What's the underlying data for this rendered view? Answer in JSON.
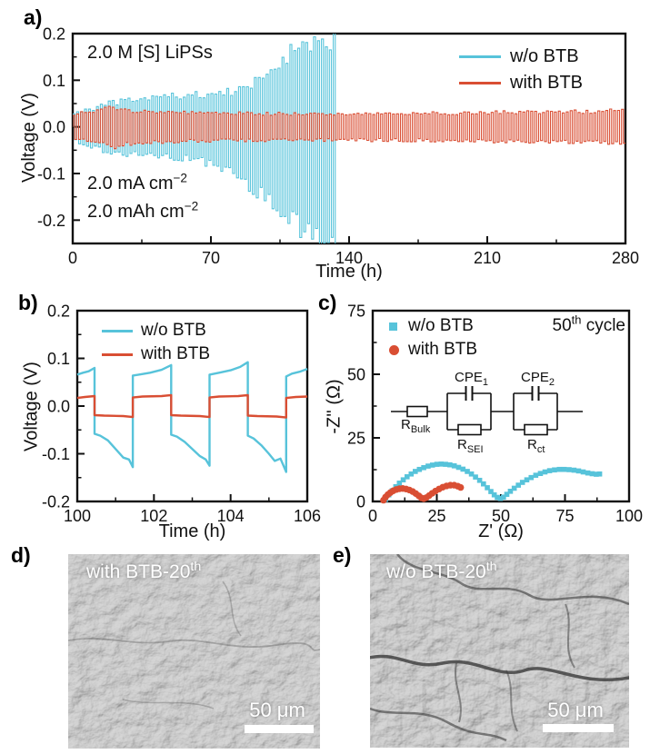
{
  "colors": {
    "cyan": "#57C3DA",
    "red": "#D94E33",
    "axis": "#111111",
    "sem_gray": "#8a8a8a"
  },
  "panel_a": {
    "label": "a)",
    "ylabel": "Voltage (V)",
    "xlabel": "Time (h)",
    "annotation_electrolyte": "2.0 M [S] LiPSs",
    "annotation_current": {
      "text": "2.0 mA cm",
      "sup": "−2"
    },
    "annotation_capacity": {
      "text": "2.0 mAh cm",
      "sup": "−2"
    },
    "legend": [
      {
        "label": "w/o BTB",
        "color": "#57C3DA"
      },
      {
        "label": "with BTB",
        "color": "#D94E33"
      }
    ]
  },
  "panel_b": {
    "label": "b)",
    "ylabel": "Voltage (V)",
    "xlabel": "Time (h)",
    "legend": [
      {
        "label": "w/o BTB",
        "color": "#57C3DA"
      },
      {
        "label": "with BTB",
        "color": "#D94E33"
      }
    ]
  },
  "panel_c": {
    "label": "c)",
    "ylabel": "-Z'' (Ω)",
    "xlabel": "Z' (Ω)",
    "cycle_note": {
      "num": "50",
      "sup": "th",
      "rest": " cycle"
    },
    "legend": [
      {
        "label": "w/o BTB",
        "color": "#57C3DA",
        "marker": "square"
      },
      {
        "label": "with BTB",
        "color": "#D94E33",
        "marker": "circle"
      }
    ],
    "circuit": {
      "r_bulk": {
        "main": "R",
        "sub": "Bulk"
      },
      "cpe1": {
        "main": "CPE",
        "sub": "1"
      },
      "cpe2": {
        "main": "CPE",
        "sub": "2"
      },
      "r_sei": {
        "main": "R",
        "sub": "SEI"
      },
      "r_ct": {
        "main": "R",
        "sub": "ct"
      }
    }
  },
  "panel_d": {
    "label": "d)",
    "caption": {
      "text": "with BTB-20",
      "sup": "th"
    },
    "scalebar": "50 μm"
  },
  "panel_e": {
    "label": "e)",
    "caption": {
      "text": "w/o BTB-20",
      "sup": "th"
    },
    "scalebar": "50 μm"
  },
  "chart_data": [
    {
      "id": "a",
      "type": "line",
      "xlabel": "Time (h)",
      "ylabel": "Voltage (V)",
      "xlim": [
        0,
        280
      ],
      "ylim": [
        -0.25,
        0.2
      ],
      "xticks": [
        0,
        70,
        140,
        210,
        280
      ],
      "yticks": [
        0.2,
        0.1,
        0.0,
        -0.1,
        -0.2
      ],
      "cycle_period_h": 2,
      "annotations": [
        "2.0 M [S] LiPSs",
        "2.0 mA cm−2",
        "2.0 mAh cm−2"
      ],
      "legend_position": "top-right",
      "series": [
        {
          "name": "w/o BTB",
          "color": "#57C3DA",
          "t_start": 0,
          "t_end": 134,
          "envelope_t": [
            0,
            10,
            20,
            30,
            45,
            60,
            70,
            80,
            90,
            100,
            110,
            120,
            128,
            134
          ],
          "envelope_pos": [
            0.03,
            0.04,
            0.052,
            0.057,
            0.065,
            0.068,
            0.07,
            0.075,
            0.09,
            0.12,
            0.16,
            0.17,
            0.18,
            0.19
          ],
          "envelope_neg": [
            -0.03,
            -0.045,
            -0.058,
            -0.06,
            -0.065,
            -0.07,
            -0.08,
            -0.1,
            -0.13,
            -0.17,
            -0.2,
            -0.23,
            -0.24,
            -0.24
          ]
        },
        {
          "name": "with BTB",
          "color": "#D94E33",
          "t_start": 0,
          "t_end": 280,
          "envelope_t": [
            0,
            10,
            20,
            30,
            60,
            100,
            140,
            180,
            220,
            260,
            280
          ],
          "envelope_pos": [
            0.028,
            0.032,
            0.042,
            0.035,
            0.03,
            0.028,
            0.028,
            0.029,
            0.031,
            0.033,
            0.035
          ],
          "envelope_neg": [
            -0.028,
            -0.032,
            -0.042,
            -0.035,
            -0.03,
            -0.028,
            -0.028,
            -0.029,
            -0.031,
            -0.033,
            -0.035
          ]
        }
      ]
    },
    {
      "id": "b",
      "type": "line",
      "xlabel": "Time (h)",
      "ylabel": "Voltage (V)",
      "xlim": [
        100,
        106
      ],
      "ylim": [
        -0.2,
        0.2
      ],
      "xticks": [
        100,
        102,
        104,
        106
      ],
      "yticks": [
        0.2,
        0.1,
        0.0,
        -0.1,
        -0.2
      ],
      "legend_position": "top-left",
      "series": [
        {
          "name": "w/o BTB",
          "color": "#57C3DA",
          "points": [
            [
              100,
              0.066
            ],
            [
              100.15,
              0.07
            ],
            [
              100.3,
              0.073
            ],
            [
              100.45,
              0.08
            ],
            [
              100.45,
              -0.058
            ],
            [
              100.6,
              -0.062
            ],
            [
              100.8,
              -0.072
            ],
            [
              101,
              -0.09
            ],
            [
              101.2,
              -0.108
            ],
            [
              101.35,
              -0.112
            ],
            [
              101.45,
              -0.128
            ],
            [
              101.45,
              0.064
            ],
            [
              101.6,
              0.066
            ],
            [
              101.9,
              0.07
            ],
            [
              102.2,
              0.076
            ],
            [
              102.45,
              0.086
            ],
            [
              102.45,
              -0.06
            ],
            [
              102.6,
              -0.064
            ],
            [
              102.8,
              -0.075
            ],
            [
              103,
              -0.09
            ],
            [
              103.2,
              -0.105
            ],
            [
              103.35,
              -0.112
            ],
            [
              103.45,
              -0.125
            ],
            [
              103.45,
              0.066
            ],
            [
              103.7,
              0.07
            ],
            [
              104,
              0.075
            ],
            [
              104.25,
              0.082
            ],
            [
              104.45,
              0.092
            ],
            [
              104.45,
              -0.062
            ],
            [
              104.6,
              -0.068
            ],
            [
              104.8,
              -0.082
            ],
            [
              105,
              -0.1
            ],
            [
              105.15,
              -0.115
            ],
            [
              105.3,
              -0.11
            ],
            [
              105.45,
              -0.138
            ],
            [
              105.45,
              0.062
            ],
            [
              105.6,
              0.068
            ],
            [
              105.8,
              0.072
            ],
            [
              106,
              0.078
            ]
          ]
        },
        {
          "name": "with BTB",
          "color": "#D94E33",
          "points": [
            [
              100,
              0.017
            ],
            [
              100.2,
              0.019
            ],
            [
              100.45,
              0.021
            ],
            [
              100.45,
              -0.019
            ],
            [
              100.7,
              -0.02
            ],
            [
              101.2,
              -0.021
            ],
            [
              101.45,
              -0.023
            ],
            [
              101.45,
              0.018
            ],
            [
              101.7,
              0.02
            ],
            [
              102.2,
              0.021
            ],
            [
              102.45,
              0.023
            ],
            [
              102.45,
              -0.019
            ],
            [
              102.7,
              -0.02
            ],
            [
              103.2,
              -0.021
            ],
            [
              103.45,
              -0.023
            ],
            [
              103.45,
              0.018
            ],
            [
              103.7,
              0.02
            ],
            [
              104.2,
              0.021
            ],
            [
              104.45,
              0.023
            ],
            [
              104.45,
              -0.02
            ],
            [
              104.7,
              -0.021
            ],
            [
              105.2,
              -0.022
            ],
            [
              105.45,
              -0.024
            ],
            [
              105.45,
              0.017
            ],
            [
              105.7,
              0.019
            ],
            [
              106,
              0.02
            ]
          ]
        }
      ]
    },
    {
      "id": "c",
      "type": "scatter",
      "xlabel": "Z' (Ω)",
      "ylabel": "-Z'' (Ω)",
      "xlim": [
        0,
        100
      ],
      "ylim": [
        0,
        75
      ],
      "xticks": [
        0,
        25,
        50,
        75,
        100
      ],
      "yticks": [
        0,
        25,
        50,
        75
      ],
      "annotation": "50th cycle",
      "legend_position": "top-left",
      "series": [
        {
          "name": "w/o BTB",
          "color": "#57C3DA",
          "marker": "square",
          "points": [
            [
              5,
              0.8
            ],
            [
              6.3,
              2.6
            ],
            [
              7.6,
              4.2
            ],
            [
              9,
              5.8
            ],
            [
              10.4,
              7.2
            ],
            [
              11.9,
              8.5
            ],
            [
              13.4,
              9.7
            ],
            [
              15,
              10.8
            ],
            [
              16.6,
              11.8
            ],
            [
              18.2,
              12.6
            ],
            [
              19.9,
              13.3
            ],
            [
              21.6,
              13.9
            ],
            [
              23.3,
              14.3
            ],
            [
              25,
              14.6
            ],
            [
              26.7,
              14.7
            ],
            [
              28.4,
              14.6
            ],
            [
              30.1,
              14.4
            ],
            [
              31.8,
              14
            ],
            [
              33.5,
              13.4
            ],
            [
              35.2,
              12.7
            ],
            [
              36.9,
              11.8
            ],
            [
              38.5,
              10.8
            ],
            [
              40.1,
              9.6
            ],
            [
              41.7,
              8.3
            ],
            [
              43.2,
              6.9
            ],
            [
              44.7,
              5.4
            ],
            [
              46.1,
              3.9
            ],
            [
              47.4,
              2.6
            ],
            [
              48.6,
              1.6
            ],
            [
              49.8,
              1.2
            ],
            [
              51,
              1.7
            ],
            [
              52.3,
              2.8
            ],
            [
              53.7,
              4
            ],
            [
              55.2,
              5.2
            ],
            [
              56.8,
              6.4
            ],
            [
              58.4,
              7.5
            ],
            [
              60.1,
              8.5
            ],
            [
              61.8,
              9.4
            ],
            [
              63.6,
              10.3
            ],
            [
              65.4,
              11
            ],
            [
              67.2,
              11.6
            ],
            [
              69,
              12.1
            ],
            [
              70.9,
              12.4
            ],
            [
              72.8,
              12.6
            ],
            [
              74.7,
              12.6
            ],
            [
              76.6,
              12.5
            ],
            [
              78.5,
              12.3
            ],
            [
              80.3,
              12
            ],
            [
              82.1,
              11.6
            ],
            [
              83.9,
              11.2
            ],
            [
              85.6,
              10.9
            ],
            [
              87.2,
              10.7
            ],
            [
              88.5,
              10.8
            ]
          ]
        },
        {
          "name": "with BTB",
          "color": "#D94E33",
          "marker": "circle",
          "points": [
            [
              4.2,
              0.5
            ],
            [
              5,
              1.7
            ],
            [
              5.9,
              2.7
            ],
            [
              6.9,
              3.5
            ],
            [
              8,
              4.2
            ],
            [
              9.2,
              4.7
            ],
            [
              10.4,
              5
            ],
            [
              11.7,
              5.1
            ],
            [
              13,
              4.9
            ],
            [
              14.3,
              4.5
            ],
            [
              15.6,
              3.9
            ],
            [
              16.8,
              3.1
            ],
            [
              18,
              2.2
            ],
            [
              19,
              1.4
            ],
            [
              19.9,
              1.1
            ],
            [
              20.9,
              1.5
            ],
            [
              22,
              2.3
            ],
            [
              23.2,
              3.2
            ],
            [
              24.5,
              4.1
            ],
            [
              25.9,
              4.9
            ],
            [
              27.3,
              5.6
            ],
            [
              28.8,
              6.1
            ],
            [
              30.3,
              6.4
            ],
            [
              31.8,
              6.4
            ],
            [
              33.2,
              6
            ],
            [
              34.3,
              5.5
            ]
          ]
        }
      ]
    }
  ]
}
